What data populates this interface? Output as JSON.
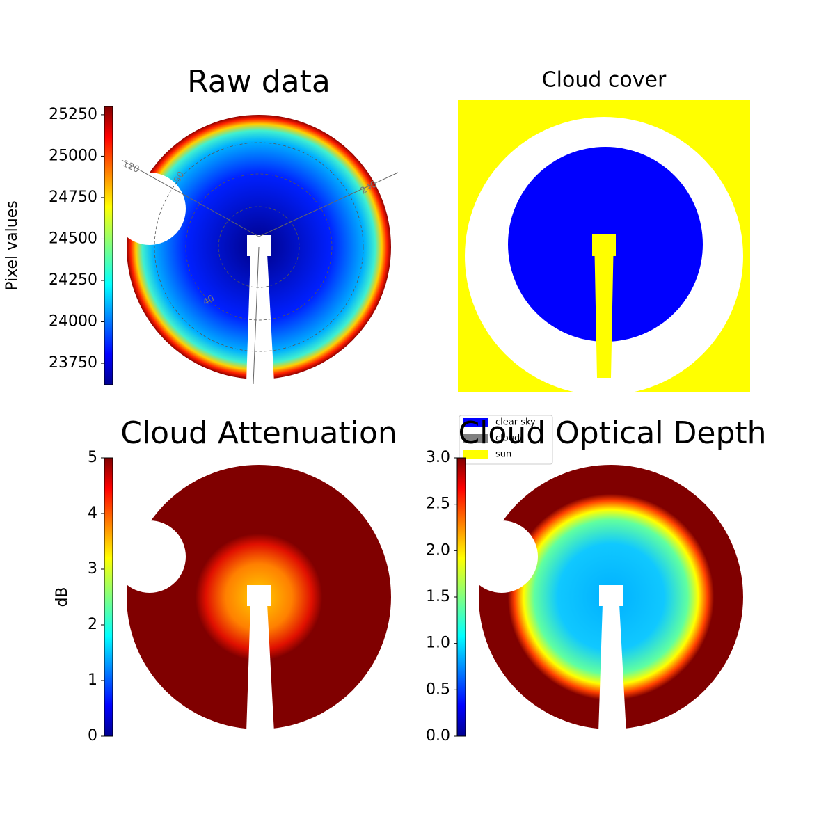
{
  "chart_data": [
    {
      "type": "image",
      "title": "Raw data",
      "colormap": "jet",
      "colorbar": {
        "label": "Pixel values",
        "lim": [
          23620,
          25300
        ],
        "ticks": [
          23750,
          24000,
          24250,
          24500,
          24750,
          25000,
          25250
        ]
      },
      "polar_labels": [
        "120",
        "80",
        "240",
        "40"
      ]
    },
    {
      "type": "mask",
      "title": "Cloud cover",
      "legend": [
        {
          "name": "clear sky",
          "color": "#0000ff"
        },
        {
          "name": "cloud",
          "color": "#808080"
        },
        {
          "name": "sun",
          "color": "#ffff00"
        }
      ]
    },
    {
      "type": "image",
      "title": "Cloud Attenuation",
      "colormap": "jet",
      "colorbar": {
        "label": "dB",
        "lim": [
          0,
          5
        ],
        "ticks": [
          0,
          1,
          2,
          3,
          4,
          5
        ]
      }
    },
    {
      "type": "image",
      "title": "Cloud Optical Depth",
      "colormap": "jet",
      "colorbar": {
        "lim": [
          0,
          3
        ],
        "ticks": [
          {
            "value": 0,
            "label": "0.0"
          },
          {
            "value": 0.5,
            "label": "0.5"
          },
          {
            "value": 1,
            "label": "1.0"
          },
          {
            "value": 1.5,
            "label": "1.5"
          },
          {
            "value": 2,
            "label": "2.0"
          },
          {
            "value": 2.5,
            "label": "2.5"
          },
          {
            "value": 3,
            "label": "3.0"
          }
        ]
      }
    }
  ]
}
